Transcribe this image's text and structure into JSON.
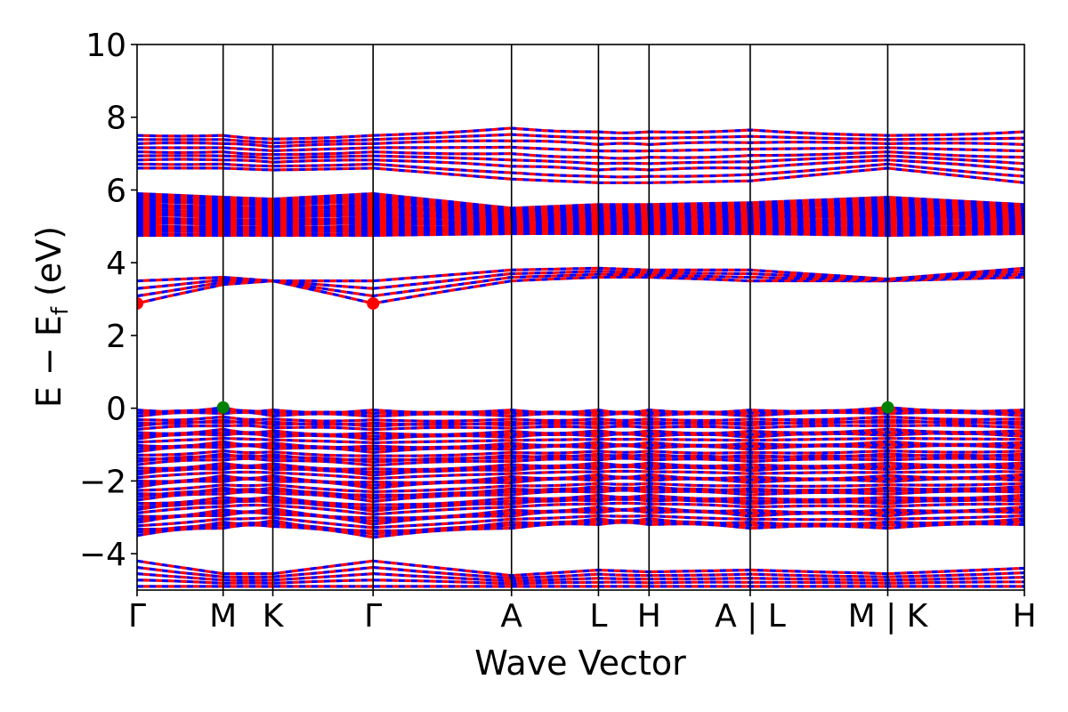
{
  "chart_data": {
    "type": "line",
    "title": "",
    "xlabel": "Wave Vector",
    "ylabel": "E − E",
    "ylabel_sub": "f",
    "ylabel_unit": " (eV)",
    "ylim": [
      -5,
      10
    ],
    "yticks": [
      -4,
      -2,
      0,
      2,
      4,
      6,
      8,
      10
    ],
    "ytick_labels": [
      "−4",
      "−2",
      "0",
      "2",
      "4",
      "6",
      "8",
      "10"
    ],
    "xlim": [
      0,
      1
    ],
    "kpoints": [
      {
        "label": "Γ",
        "x": 0.0
      },
      {
        "label": "M",
        "x": 0.097
      },
      {
        "label": "K",
        "x": 0.153
      },
      {
        "label": "Γ",
        "x": 0.266
      },
      {
        "label": "A",
        "x": 0.422
      },
      {
        "label": "L",
        "x": 0.52
      },
      {
        "label": "H",
        "x": 0.577
      },
      {
        "label": "A | L",
        "x": 0.691
      },
      {
        "label": "M | K",
        "x": 0.846
      },
      {
        "label": "H",
        "x": 1.0
      }
    ],
    "grid": false,
    "line_style": "alternating dashed, spin-up and spin-down overlaid",
    "series": [
      {
        "color": "#0000ff"
      },
      {
        "color": "#ff0000"
      }
    ],
    "cbm": {
      "x": [
        0.0,
        0.266
      ],
      "y": 2.88,
      "color": "#ff0000"
    },
    "vbm": {
      "x": [
        0.097,
        0.846
      ],
      "y": 0.02,
      "color": "#008000"
    },
    "band_groups": [
      {
        "bottom": [
          -4.9,
          -4.9,
          -4.9,
          -4.9,
          -4.9,
          -4.9,
          -4.9,
          -4.9,
          -4.9,
          -4.9
        ],
        "top": [
          -4.2,
          -4.55,
          -4.55,
          -4.2,
          -4.6,
          -4.45,
          -4.5,
          -4.45,
          -4.55,
          -4.4
        ],
        "density": 5
      },
      {
        "bottom": [
          -3.5,
          -3.3,
          -3.25,
          -3.55,
          -3.3,
          -3.2,
          -3.2,
          -3.3,
          -3.3,
          -3.2
        ],
        "top": [
          -0.05,
          0.02,
          -0.05,
          -0.05,
          -0.05,
          -0.05,
          -0.05,
          -0.05,
          0.02,
          -0.05
        ],
        "density": 40
      },
      {
        "bottom": [
          2.88,
          3.4,
          3.5,
          2.88,
          3.5,
          3.6,
          3.6,
          3.5,
          3.5,
          3.6
        ],
        "top": [
          3.5,
          3.6,
          3.5,
          3.5,
          3.8,
          3.85,
          3.8,
          3.8,
          3.55,
          3.85
        ],
        "density": 4
      },
      {
        "bottom": [
          4.75,
          4.75,
          4.75,
          4.75,
          4.8,
          4.8,
          4.8,
          4.8,
          4.75,
          4.8
        ],
        "top": [
          5.9,
          5.8,
          5.75,
          5.9,
          5.5,
          5.6,
          5.6,
          5.65,
          5.8,
          5.6
        ],
        "density": 22
      },
      {
        "bottom": [
          6.6,
          6.6,
          6.55,
          6.6,
          6.3,
          6.2,
          6.2,
          6.25,
          6.6,
          6.2
        ],
        "top": [
          7.5,
          7.5,
          7.4,
          7.5,
          7.7,
          7.6,
          7.6,
          7.65,
          7.5,
          7.6
        ],
        "density": 9
      }
    ]
  }
}
